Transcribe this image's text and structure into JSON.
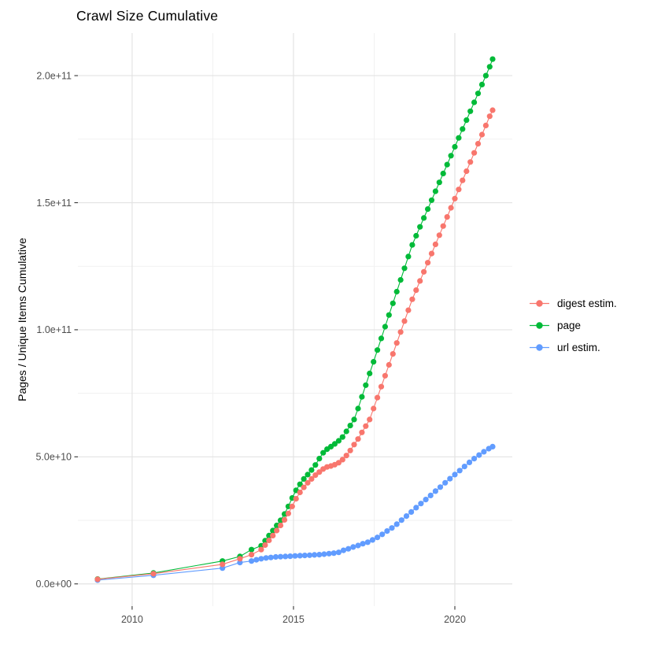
{
  "title": "Crawl Size Cumulative",
  "y_axis_title": "Pages / Unique Items Cumulative",
  "legend": {
    "position": "right",
    "items": [
      {
        "label": "digest estim.",
        "color": "#F8766D"
      },
      {
        "label": "page",
        "color": "#00BA38"
      },
      {
        "label": "url estim.",
        "color": "#619CFF"
      }
    ]
  },
  "style": {
    "background": "#ffffff",
    "grid_major_color": "#e3e3e3",
    "grid_minor_color": "#f1f1f1",
    "axis_text_color": "#4d4d4d",
    "tick_mark_color": "#333333",
    "point_radius": 3.6,
    "line_width": 1.1
  },
  "chart_data": {
    "type": "scatter",
    "title": "Crawl Size Cumulative",
    "xlabel": "",
    "ylabel": "Pages / Unique Items Cumulative",
    "grid": true,
    "legend_position": "right",
    "y_unit": "pages (values below in units of 1e9)",
    "y_unit_multiplier": 1000000000.0,
    "xlim": [
      2008.32,
      2021.78
    ],
    "ylim": [
      -8.75,
      216.75
    ],
    "x_ticks": [
      {
        "value": 2010,
        "label": "2010"
      },
      {
        "value": 2015,
        "label": "2015"
      },
      {
        "value": 2020,
        "label": "2020"
      }
    ],
    "y_ticks": [
      {
        "value": 0,
        "label": "0.0e+00"
      },
      {
        "value": 50,
        "label": "5.0e+10"
      },
      {
        "value": 100,
        "label": "1.0e+11"
      },
      {
        "value": 150,
        "label": "1.5e+11"
      },
      {
        "value": 200,
        "label": "2.0e+11"
      }
    ],
    "series": [
      {
        "name": "digest estim.",
        "color": "#F8766D",
        "points": [
          [
            2008.93,
            1.8
          ],
          [
            2010.66,
            4.0
          ],
          [
            2012.8,
            7.7
          ],
          [
            2013.34,
            9.9
          ],
          [
            2013.7,
            11.5
          ],
          [
            2014.0,
            13.5
          ],
          [
            2014.12,
            15.3
          ],
          [
            2014.24,
            17.1
          ],
          [
            2014.36,
            19.0
          ],
          [
            2014.48,
            21.0
          ],
          [
            2014.6,
            23.0
          ],
          [
            2014.72,
            25.2
          ],
          [
            2014.84,
            27.7
          ],
          [
            2014.96,
            30.5
          ],
          [
            2015.08,
            33.5
          ],
          [
            2015.2,
            36.0
          ],
          [
            2015.32,
            38.0
          ],
          [
            2015.44,
            39.8
          ],
          [
            2015.56,
            41.3
          ],
          [
            2015.68,
            42.8
          ],
          [
            2015.8,
            44.0
          ],
          [
            2015.92,
            45.2
          ],
          [
            2016.04,
            46.0
          ],
          [
            2016.16,
            46.4
          ],
          [
            2016.28,
            46.9
          ],
          [
            2016.4,
            47.7
          ],
          [
            2016.52,
            48.9
          ],
          [
            2016.64,
            50.5
          ],
          [
            2016.76,
            52.5
          ],
          [
            2016.88,
            54.8
          ],
          [
            2017.0,
            57.0
          ],
          [
            2017.12,
            59.6
          ],
          [
            2017.24,
            62.1
          ],
          [
            2017.36,
            64.7
          ],
          [
            2017.48,
            69.0
          ],
          [
            2017.6,
            73.3
          ],
          [
            2017.72,
            77.6
          ],
          [
            2017.84,
            81.9
          ],
          [
            2017.96,
            86.2
          ],
          [
            2018.08,
            90.5
          ],
          [
            2018.2,
            94.8
          ],
          [
            2018.32,
            99.1
          ],
          [
            2018.44,
            103.4
          ],
          [
            2018.56,
            107.7
          ],
          [
            2018.68,
            112.0
          ],
          [
            2018.8,
            115.6
          ],
          [
            2018.92,
            119.2
          ],
          [
            2019.04,
            122.8
          ],
          [
            2019.16,
            126.4
          ],
          [
            2019.28,
            130.0
          ],
          [
            2019.4,
            133.6
          ],
          [
            2019.52,
            137.2
          ],
          [
            2019.64,
            140.8
          ],
          [
            2019.76,
            144.4
          ],
          [
            2019.88,
            148.0
          ],
          [
            2020.0,
            151.6
          ],
          [
            2020.12,
            155.2
          ],
          [
            2020.24,
            158.8
          ],
          [
            2020.36,
            162.4
          ],
          [
            2020.48,
            166.0
          ],
          [
            2020.6,
            169.6
          ],
          [
            2020.72,
            173.2
          ],
          [
            2020.84,
            176.8
          ],
          [
            2020.96,
            180.4
          ],
          [
            2021.08,
            184.0
          ],
          [
            2021.17,
            186.4
          ]
        ]
      },
      {
        "name": "page",
        "color": "#00BA38",
        "points": [
          [
            2008.93,
            1.9
          ],
          [
            2010.66,
            4.3
          ],
          [
            2012.8,
            9.0
          ],
          [
            2013.34,
            10.8
          ],
          [
            2013.7,
            13.5
          ],
          [
            2014.0,
            15.0
          ],
          [
            2014.12,
            17.0
          ],
          [
            2014.24,
            19.0
          ],
          [
            2014.36,
            21.0
          ],
          [
            2014.48,
            23.0
          ],
          [
            2014.6,
            25.0
          ],
          [
            2014.72,
            27.5
          ],
          [
            2014.84,
            30.5
          ],
          [
            2014.96,
            33.8
          ],
          [
            2015.08,
            36.8
          ],
          [
            2015.2,
            39.2
          ],
          [
            2015.32,
            41.3
          ],
          [
            2015.44,
            43.0
          ],
          [
            2015.56,
            44.8
          ],
          [
            2015.68,
            46.8
          ],
          [
            2015.8,
            49.3
          ],
          [
            2015.92,
            51.6
          ],
          [
            2016.04,
            53.0
          ],
          [
            2016.16,
            54.0
          ],
          [
            2016.28,
            55.1
          ],
          [
            2016.4,
            56.3
          ],
          [
            2016.52,
            57.8
          ],
          [
            2016.64,
            60.0
          ],
          [
            2016.76,
            62.3
          ],
          [
            2016.88,
            64.7
          ],
          [
            2017.0,
            69.0
          ],
          [
            2017.12,
            73.6
          ],
          [
            2017.24,
            78.2
          ],
          [
            2017.36,
            82.8
          ],
          [
            2017.48,
            87.4
          ],
          [
            2017.6,
            92.0
          ],
          [
            2017.72,
            96.6
          ],
          [
            2017.84,
            101.2
          ],
          [
            2017.96,
            105.8
          ],
          [
            2018.08,
            110.4
          ],
          [
            2018.2,
            115.0
          ],
          [
            2018.32,
            119.6
          ],
          [
            2018.44,
            124.2
          ],
          [
            2018.56,
            128.8
          ],
          [
            2018.68,
            133.4
          ],
          [
            2018.8,
            137.0
          ],
          [
            2018.92,
            140.5
          ],
          [
            2019.04,
            144.0
          ],
          [
            2019.16,
            147.5
          ],
          [
            2019.28,
            151.0
          ],
          [
            2019.4,
            154.5
          ],
          [
            2019.52,
            158.0
          ],
          [
            2019.64,
            161.5
          ],
          [
            2019.76,
            165.0
          ],
          [
            2019.88,
            168.5
          ],
          [
            2020.0,
            172.0
          ],
          [
            2020.12,
            175.5
          ],
          [
            2020.24,
            179.0
          ],
          [
            2020.36,
            182.5
          ],
          [
            2020.48,
            186.0
          ],
          [
            2020.6,
            189.5
          ],
          [
            2020.72,
            193.0
          ],
          [
            2020.84,
            196.5
          ],
          [
            2020.96,
            200.0
          ],
          [
            2021.08,
            203.5
          ],
          [
            2021.17,
            206.5
          ]
        ]
      },
      {
        "name": "url estim.",
        "color": "#619CFF",
        "points": [
          [
            2008.93,
            1.5
          ],
          [
            2010.66,
            3.4
          ],
          [
            2012.8,
            6.2
          ],
          [
            2013.34,
            8.4
          ],
          [
            2013.7,
            9.0
          ],
          [
            2013.85,
            9.5
          ],
          [
            2014.0,
            9.9
          ],
          [
            2014.15,
            10.2
          ],
          [
            2014.3,
            10.4
          ],
          [
            2014.45,
            10.6
          ],
          [
            2014.6,
            10.7
          ],
          [
            2014.75,
            10.8
          ],
          [
            2014.9,
            10.9
          ],
          [
            2015.05,
            11.0
          ],
          [
            2015.2,
            11.1
          ],
          [
            2015.35,
            11.2
          ],
          [
            2015.5,
            11.3
          ],
          [
            2015.65,
            11.4
          ],
          [
            2015.8,
            11.5
          ],
          [
            2015.95,
            11.7
          ],
          [
            2016.1,
            11.9
          ],
          [
            2016.25,
            12.1
          ],
          [
            2016.4,
            12.4
          ],
          [
            2016.55,
            13.2
          ],
          [
            2016.7,
            13.8
          ],
          [
            2016.85,
            14.5
          ],
          [
            2017.0,
            15.1
          ],
          [
            2017.15,
            15.8
          ],
          [
            2017.3,
            16.4
          ],
          [
            2017.45,
            17.3
          ],
          [
            2017.6,
            18.3
          ],
          [
            2017.75,
            19.5
          ],
          [
            2017.9,
            20.8
          ],
          [
            2018.05,
            22.0
          ],
          [
            2018.2,
            23.5
          ],
          [
            2018.35,
            25.1
          ],
          [
            2018.5,
            26.7
          ],
          [
            2018.65,
            28.3
          ],
          [
            2018.8,
            30.0
          ],
          [
            2018.95,
            31.6
          ],
          [
            2019.1,
            33.2
          ],
          [
            2019.25,
            34.8
          ],
          [
            2019.4,
            36.5
          ],
          [
            2019.55,
            38.1
          ],
          [
            2019.7,
            39.8
          ],
          [
            2019.85,
            41.4
          ],
          [
            2020.0,
            43.0
          ],
          [
            2020.15,
            44.6
          ],
          [
            2020.3,
            46.2
          ],
          [
            2020.45,
            47.8
          ],
          [
            2020.6,
            49.3
          ],
          [
            2020.75,
            50.7
          ],
          [
            2020.9,
            52.0
          ],
          [
            2021.05,
            53.2
          ],
          [
            2021.17,
            54.0
          ]
        ]
      }
    ]
  }
}
